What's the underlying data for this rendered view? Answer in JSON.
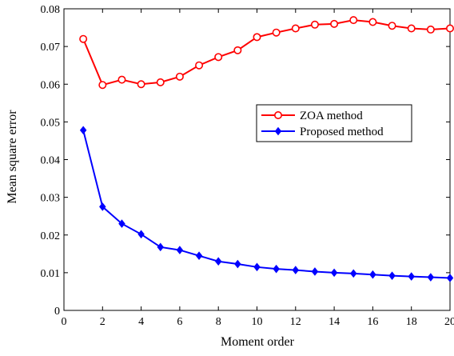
{
  "chart_data": {
    "type": "line",
    "title": "",
    "xlabel": "Moment order",
    "ylabel": "Mean square error",
    "xlim": [
      0,
      20
    ],
    "ylim": [
      0,
      0.08
    ],
    "xticks": [
      0,
      2,
      4,
      6,
      8,
      10,
      12,
      14,
      16,
      18,
      20
    ],
    "xtick_labels": [
      "0",
      "2",
      "4",
      "6",
      "8",
      "10",
      "12",
      "14",
      "16",
      "18",
      "20"
    ],
    "yticks": [
      0,
      0.01,
      0.02,
      0.03,
      0.04,
      0.05,
      0.06,
      0.07,
      0.08
    ],
    "ytick_labels": [
      "0",
      "0.01",
      "0.02",
      "0.03",
      "0.04",
      "0.05",
      "0.06",
      "0.07",
      "0.08"
    ],
    "grid": false,
    "legend_position": "center-right",
    "x": [
      1,
      2,
      3,
      4,
      5,
      6,
      7,
      8,
      9,
      10,
      11,
      12,
      13,
      14,
      15,
      16,
      17,
      18,
      19,
      20
    ],
    "series": [
      {
        "name": "ZOA method",
        "color": "#ff0000",
        "marker": "circle",
        "values": [
          0.072,
          0.0598,
          0.0612,
          0.06,
          0.0605,
          0.062,
          0.065,
          0.0672,
          0.069,
          0.0725,
          0.0737,
          0.0748,
          0.0758,
          0.076,
          0.077,
          0.0765,
          0.0755,
          0.0748,
          0.0745,
          0.0748
        ]
      },
      {
        "name": "Proposed method",
        "color": "#0000ff",
        "marker": "diamond",
        "values": [
          0.0478,
          0.0275,
          0.023,
          0.0202,
          0.0168,
          0.016,
          0.0145,
          0.013,
          0.0123,
          0.0115,
          0.011,
          0.0107,
          0.0103,
          0.01,
          0.0098,
          0.0095,
          0.0092,
          0.009,
          0.0088,
          0.0086
        ]
      }
    ]
  }
}
